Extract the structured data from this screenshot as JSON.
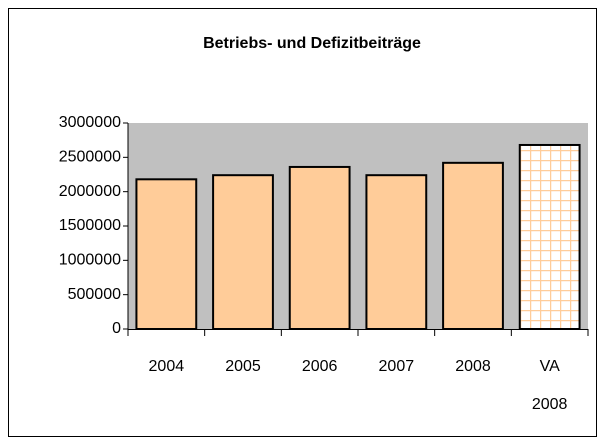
{
  "chart_data": {
    "type": "bar",
    "title": "Betriebs- und Defizitbeiträge",
    "categories": [
      "2004",
      "2005",
      "2006",
      "2007",
      "2008",
      "VA 2008"
    ],
    "values": [
      2180000,
      2240000,
      2360000,
      2240000,
      2420000,
      2680000
    ],
    "colors": [
      "#ffcc99",
      "#ffcc99",
      "#ffcc99",
      "#ffcc99",
      "#ffcc99",
      "#ffffff"
    ],
    "hatch": [
      false,
      false,
      false,
      false,
      false,
      true
    ],
    "hatch_color": "#ffcc99",
    "plot_background": "#c0c0c0",
    "ylim": [
      0,
      3000000
    ],
    "yticks": [
      0,
      500000,
      1000000,
      1500000,
      2000000,
      2500000,
      3000000
    ],
    "grid": false
  }
}
